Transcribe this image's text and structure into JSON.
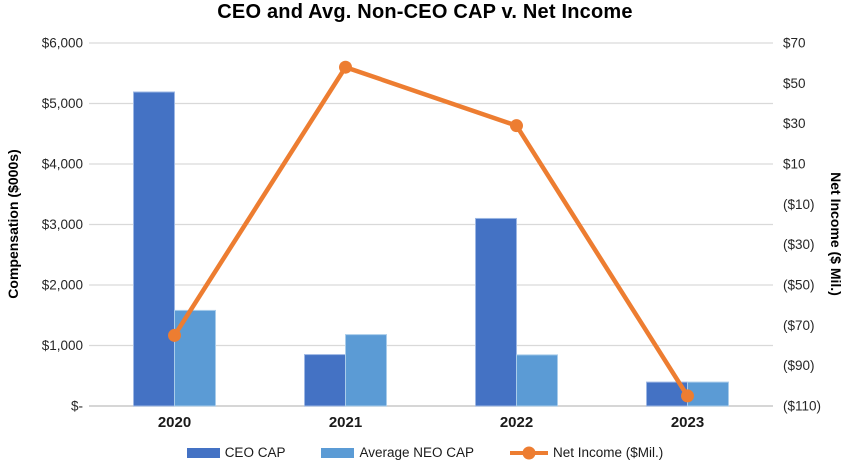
{
  "chart_data": {
    "type": "bar",
    "subtype": "combo-bar-line",
    "title": "CEO and Avg. Non-CEO CAP v. Net Income",
    "categories": [
      "2020",
      "2021",
      "2022",
      "2023"
    ],
    "series": [
      {
        "name": "CEO CAP",
        "type": "bar",
        "axis": "left",
        "color": "#4472C4",
        "edge": "#9DB7E4",
        "values": [
          5190,
          850,
          3100,
          395
        ]
      },
      {
        "name": "Average NEO CAP",
        "type": "bar",
        "axis": "left",
        "color": "#5B9BD5",
        "edge": "#A9CCEA",
        "values": [
          1580,
          1180,
          845,
          395
        ]
      },
      {
        "name": "Net Income ($Mil.)",
        "type": "line",
        "axis": "right",
        "color": "#ED7D31",
        "values": [
          -75,
          58,
          29,
          -105
        ]
      }
    ],
    "left_axis": {
      "title": "Compensation ($000s)",
      "min": 0,
      "max": 6000,
      "tick_labels": [
        "$6,000",
        "$5,000",
        "$4,000",
        "$3,000",
        "$2,000",
        "$1,000",
        "$-"
      ]
    },
    "right_axis": {
      "title": "Net Income ($ Mil.)",
      "min": -110,
      "max": 70,
      "tick_labels": [
        "$70",
        "$50",
        "$30",
        "$10",
        "($10)",
        "($30)",
        "($50)",
        "($70)",
        "($90)",
        "($110)"
      ]
    },
    "grid": "horizontal",
    "legend_position": "bottom",
    "colors": {
      "gridline": "#D9D9D9",
      "baseline": "#C9C9C9",
      "tick_text": "#262626",
      "category_text": "#1a1a1a"
    }
  }
}
